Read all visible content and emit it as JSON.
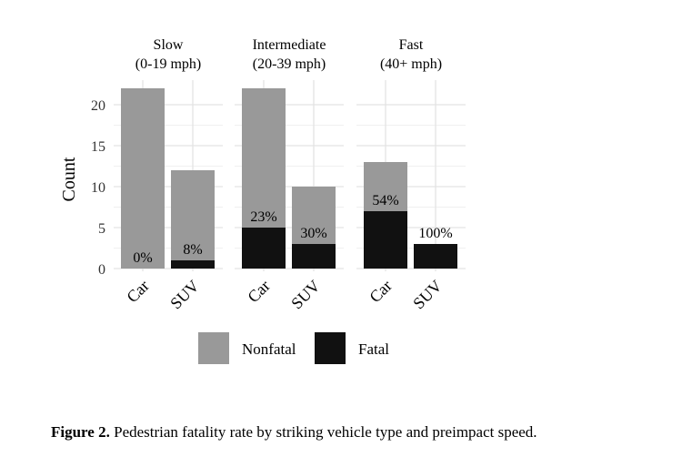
{
  "chart_data": {
    "type": "bar",
    "stacked": true,
    "facets": [
      {
        "label_line1": "Slow",
        "label_line2": "(0-19 mph)",
        "categories": [
          "Car",
          "SUV"
        ],
        "nonfatal": [
          22,
          11
        ],
        "fatal": [
          0,
          1
        ],
        "percent_labels": [
          "0%",
          "8%"
        ]
      },
      {
        "label_line1": "Intermediate",
        "label_line2": "(20-39 mph)",
        "categories": [
          "Car",
          "SUV"
        ],
        "nonfatal": [
          17,
          7
        ],
        "fatal": [
          5,
          3
        ],
        "percent_labels": [
          "23%",
          "30%"
        ]
      },
      {
        "label_line1": "Fast",
        "label_line2": "(40+ mph)",
        "categories": [
          "Car",
          "SUV"
        ],
        "nonfatal": [
          6,
          0
        ],
        "fatal": [
          7,
          3
        ],
        "percent_labels": [
          "54%",
          "100%"
        ]
      }
    ],
    "series": [
      {
        "name": "Nonfatal",
        "color": "#999999"
      },
      {
        "name": "Fatal",
        "color": "#111111"
      }
    ],
    "ylabel": "Count",
    "yticks": [
      "0",
      "5",
      "10",
      "15",
      "20"
    ],
    "ylim": [
      0,
      22
    ],
    "grid": true,
    "legend_position": "bottom"
  },
  "caption": {
    "label": "Figure 2.",
    "text": " Pedestrian fatality rate by striking vehicle type and preimpact speed."
  }
}
